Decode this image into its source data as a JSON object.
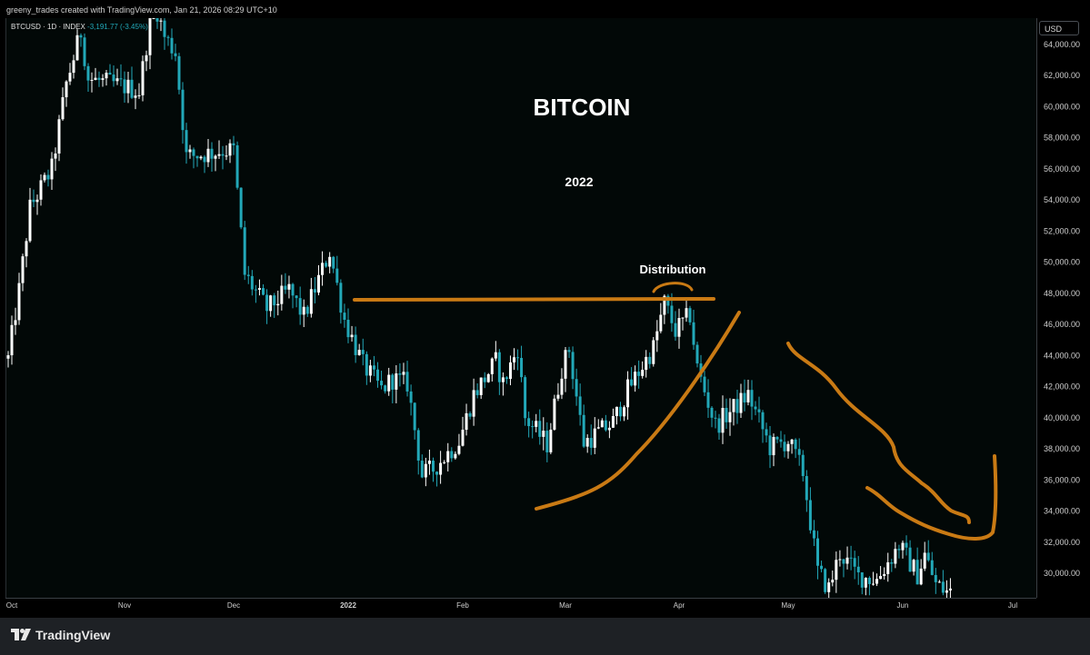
{
  "header": {
    "attribution": "greeny_trades created with TradingView.com, Jan 21, 2026 08:29 UTC+10",
    "symbol_label": "BTCUSD · 1D · INDEX",
    "change_text": "-3,191.77 (-3.45%)"
  },
  "price_axis": {
    "currency_label": "USD"
  },
  "footer": {
    "brand": "TradingView"
  },
  "annotations": {
    "title": "BITCOIN",
    "year": "2022",
    "distribution_label": "Distribution",
    "drawing_color": "#c97a14"
  },
  "colors": {
    "up_candle": "#ffffff",
    "down_candle": "#22a8b8",
    "background": "#020807"
  },
  "chart_data": {
    "type": "candlestick",
    "symbol": "BTCUSD",
    "interval": "1D",
    "title": "BITCOIN",
    "subtitle": "2022",
    "ylim": [
      28800,
      66000
    ],
    "y_ticks": [
      30000,
      32000,
      34000,
      36000,
      38000,
      40000,
      42000,
      44000,
      46000,
      48000,
      50000,
      52000,
      54000,
      56000,
      58000,
      60000,
      62000,
      64000
    ],
    "y_tick_labels": [
      "30,000.00",
      "32,000.00",
      "34,000.00",
      "36,000.00",
      "38,000.00",
      "40,000.00",
      "42,000.00",
      "44,000.00",
      "46,000.00",
      "48,000.00",
      "50,000.00",
      "52,000.00",
      "54,000.00",
      "56,000.00",
      "58,000.00",
      "60,000.00",
      "62,000.00",
      "64,000.00"
    ],
    "x_labels": [
      "Oct",
      "Nov",
      "Dec",
      "2022",
      "Feb",
      "Mar",
      "Apr",
      "May",
      "Jun",
      "Jul"
    ],
    "x_label_dates": [
      "2021-10-01",
      "2021-11-01",
      "2021-12-01",
      "2022-01-01",
      "2022-02-01",
      "2022-03-01",
      "2022-04-01",
      "2022-05-01",
      "2022-06-01",
      "2022-07-01"
    ],
    "start_date": "2021-09-30",
    "end_date": "2022-06-14",
    "close_keypoints": [
      [
        "2021-09-30",
        43800
      ],
      [
        "2021-10-03",
        48200
      ],
      [
        "2021-10-06",
        53500
      ],
      [
        "2021-10-12",
        56000
      ],
      [
        "2021-10-16",
        61500
      ],
      [
        "2021-10-20",
        64800
      ],
      [
        "2021-10-22",
        61800
      ],
      [
        "2021-10-28",
        61500
      ],
      [
        "2021-11-01",
        61300
      ],
      [
        "2021-11-05",
        61000
      ],
      [
        "2021-11-09",
        67000
      ],
      [
        "2021-11-12",
        64500
      ],
      [
        "2021-11-15",
        63500
      ],
      [
        "2021-11-18",
        56800
      ],
      [
        "2021-11-24",
        57000
      ],
      [
        "2021-11-28",
        57200
      ],
      [
        "2021-12-01",
        57200
      ],
      [
        "2021-12-04",
        49200
      ],
      [
        "2021-12-10",
        47000
      ],
      [
        "2021-12-16",
        48200
      ],
      [
        "2021-12-20",
        46500
      ],
      [
        "2021-12-27",
        50700
      ],
      [
        "2021-12-31",
        46300
      ],
      [
        "2022-01-05",
        43400
      ],
      [
        "2022-01-10",
        41800
      ],
      [
        "2022-01-13",
        42500
      ],
      [
        "2022-01-17",
        42200
      ],
      [
        "2022-01-21",
        36300
      ],
      [
        "2022-01-24",
        36700
      ],
      [
        "2022-01-31",
        38500
      ],
      [
        "2022-02-04",
        41500
      ],
      [
        "2022-02-10",
        43600
      ],
      [
        "2022-02-12",
        42200
      ],
      [
        "2022-02-16",
        44500
      ],
      [
        "2022-02-18",
        40000
      ],
      [
        "2022-02-24",
        38300
      ],
      [
        "2022-02-28",
        43200
      ],
      [
        "2022-03-02",
        44400
      ],
      [
        "2022-03-06",
        38400
      ],
      [
        "2022-03-14",
        39700
      ],
      [
        "2022-03-18",
        41800
      ],
      [
        "2022-03-25",
        44500
      ],
      [
        "2022-03-28",
        47400
      ],
      [
        "2022-03-31",
        45600
      ],
      [
        "2022-04-04",
        46600
      ],
      [
        "2022-04-06",
        43200
      ],
      [
        "2022-04-11",
        39500
      ],
      [
        "2022-04-20",
        41500
      ],
      [
        "2022-04-26",
        38100
      ],
      [
        "2022-05-01",
        38500
      ],
      [
        "2022-05-05",
        36500
      ],
      [
        "2022-05-09",
        30100
      ],
      [
        "2022-05-12",
        29000
      ],
      [
        "2022-05-15",
        31300
      ],
      [
        "2022-05-20",
        29800
      ],
      [
        "2022-05-25",
        29600
      ],
      [
        "2022-05-31",
        31800
      ],
      [
        "2022-06-05",
        29900
      ],
      [
        "2022-06-07",
        31200
      ],
      [
        "2022-06-10",
        29300
      ],
      [
        "2022-06-13",
        28800
      ]
    ],
    "grid": false,
    "legend": "none"
  }
}
